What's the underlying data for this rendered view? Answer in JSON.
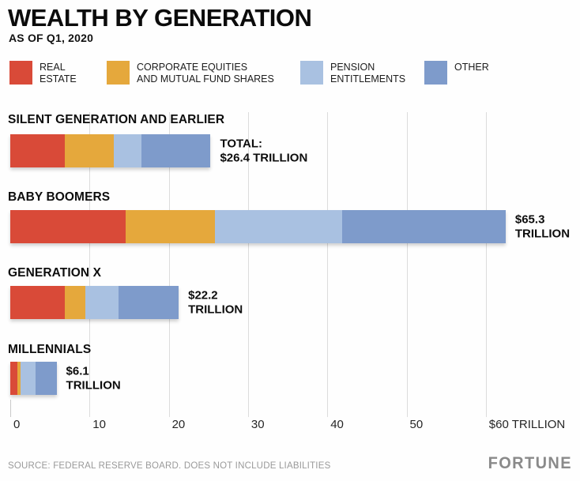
{
  "header": {
    "title": "WEALTH BY GENERATION",
    "subtitle": "AS OF Q1, 2020"
  },
  "footer": {
    "source": "SOURCE: FEDERAL RESERVE BOARD. DOES NOT INCLUDE LIABILITIES",
    "brand": "FORTUNE"
  },
  "chart_data": {
    "type": "bar",
    "orientation": "horizontal-stacked",
    "title": "WEALTH BY GENERATION",
    "subtitle": "AS OF Q1, 2020",
    "unit": "trillion USD",
    "xlim": [
      0,
      60
    ],
    "grid": "vertical",
    "legend_position": "top",
    "axis_ticks": [
      {
        "value": 0,
        "label": "0"
      },
      {
        "value": 10,
        "label": "10"
      },
      {
        "value": 20,
        "label": "20"
      },
      {
        "value": 30,
        "label": "30"
      },
      {
        "value": 40,
        "label": "40"
      },
      {
        "value": 50,
        "label": "50"
      },
      {
        "value": 60,
        "label": "$60 TRILLION"
      }
    ],
    "series_names": [
      "REAL ESTATE",
      "CORPORATE EQUITIES AND MUTUAL FUND SHARES",
      "PENSION ENTITLEMENTS",
      "OTHER"
    ],
    "colors": [
      "#D94A38",
      "#E5A83C",
      "#A9C1E1",
      "#7E9BCB"
    ],
    "legend": [
      {
        "line1": "REAL",
        "line2": "ESTATE"
      },
      {
        "line1": "CORPORATE EQUITIES",
        "line2": "AND MUTUAL FUND SHARES"
      },
      {
        "line1": "PENSION",
        "line2": "ENTITLEMENTS"
      },
      {
        "line1": "OTHER",
        "line2": ""
      }
    ],
    "rows": [
      {
        "category": "SILENT GENERATION AND EARLIER",
        "total": 26.4,
        "total_label_lines": [
          "TOTAL:",
          "$26.4 TRILLION"
        ],
        "values": [
          7.2,
          6.5,
          3.6,
          9.1
        ]
      },
      {
        "category": "BABY BOOMERS",
        "total": 65.3,
        "total_label_lines": [
          "$65.3",
          "TRILLION"
        ],
        "values": [
          15.2,
          11.8,
          16.8,
          21.5
        ]
      },
      {
        "category": "GENERATION X",
        "total": 22.2,
        "total_label_lines": [
          "$22.2",
          "TRILLION"
        ],
        "values": [
          7.2,
          2.7,
          4.4,
          7.9
        ]
      },
      {
        "category": "MILLENNIALS",
        "total": 6.1,
        "total_label_lines": [
          "$6.1",
          "TRILLION"
        ],
        "values": [
          0.9,
          0.5,
          1.9,
          2.8
        ]
      }
    ]
  }
}
